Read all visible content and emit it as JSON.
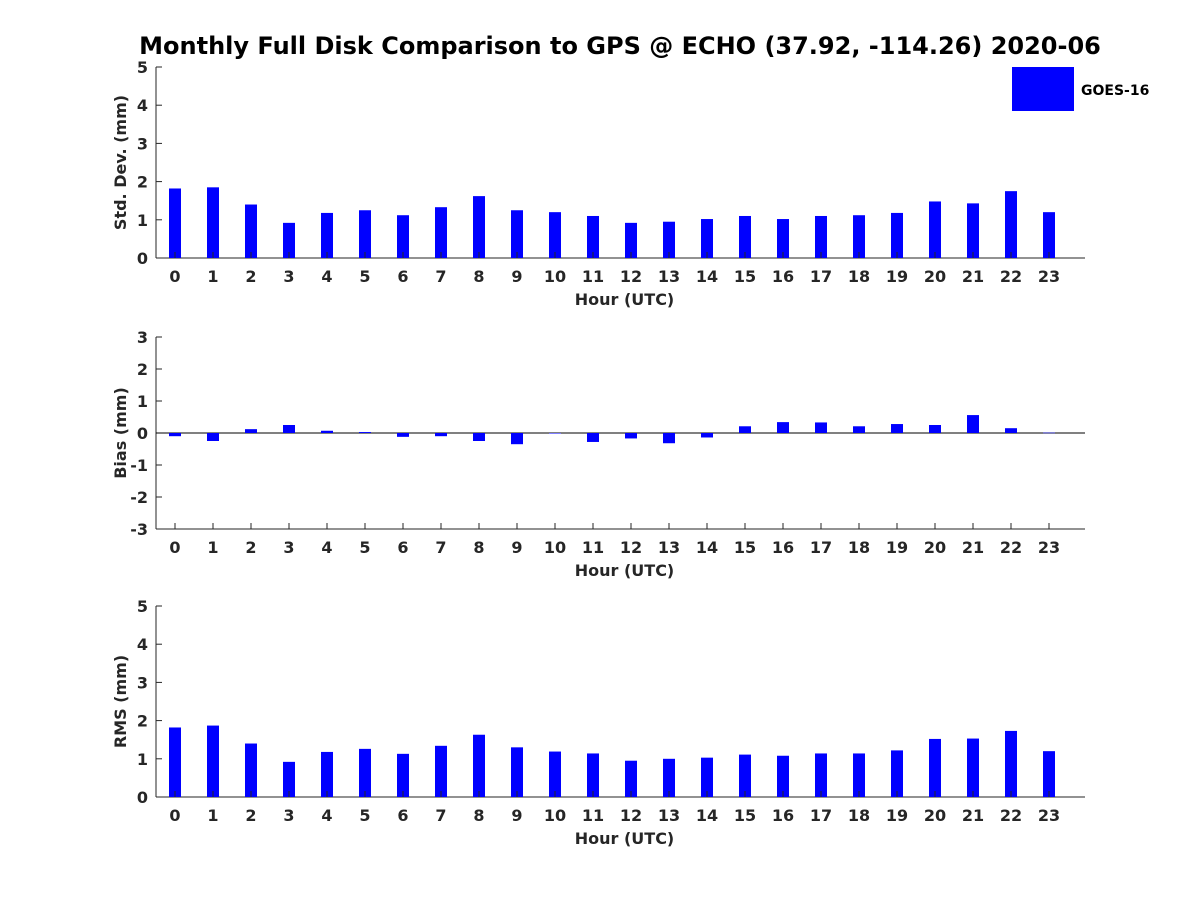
{
  "title": "Monthly Full Disk Comparison to GPS @ ECHO (37.92, -114.26) 2020-06",
  "legend": {
    "label": "GOES-16",
    "color": "#0000ff",
    "placement": "top-right"
  },
  "chart_data": [
    {
      "type": "bar",
      "ylabel": "Std. Dev. (mm)",
      "xlabel": "Hour (UTC)",
      "ylim": [
        0,
        5
      ],
      "yticks": [
        "0",
        "1",
        "2",
        "3",
        "4",
        "5"
      ],
      "categories": [
        "0",
        "1",
        "2",
        "3",
        "4",
        "5",
        "6",
        "7",
        "8",
        "9",
        "10",
        "11",
        "12",
        "13",
        "14",
        "15",
        "16",
        "17",
        "18",
        "19",
        "20",
        "21",
        "22",
        "23"
      ],
      "series": [
        {
          "name": "GOES-16",
          "values": [
            1.82,
            1.85,
            1.4,
            0.92,
            1.18,
            1.25,
            1.12,
            1.33,
            1.62,
            1.25,
            1.2,
            1.1,
            0.92,
            0.95,
            1.02,
            1.1,
            1.02,
            1.1,
            1.12,
            1.18,
            1.48,
            1.43,
            1.75,
            1.2
          ]
        }
      ]
    },
    {
      "type": "bar",
      "ylabel": "Bias (mm)",
      "xlabel": "Hour (UTC)",
      "ylim": [
        -3,
        3
      ],
      "yticks": [
        "-3",
        "-2",
        "-1",
        "0",
        "1",
        "2",
        "3"
      ],
      "categories": [
        "0",
        "1",
        "2",
        "3",
        "4",
        "5",
        "6",
        "7",
        "8",
        "9",
        "10",
        "11",
        "12",
        "13",
        "14",
        "15",
        "16",
        "17",
        "18",
        "19",
        "20",
        "21",
        "22",
        "23"
      ],
      "series": [
        {
          "name": "GOES-16",
          "values": [
            -0.1,
            -0.25,
            0.12,
            0.25,
            0.07,
            0.03,
            -0.12,
            -0.1,
            -0.25,
            -0.35,
            -0.01,
            -0.28,
            -0.17,
            -0.32,
            -0.14,
            0.21,
            0.34,
            0.33,
            0.21,
            0.28,
            0.25,
            0.56,
            0.15,
            0.01
          ]
        }
      ]
    },
    {
      "type": "bar",
      "ylabel": "RMS (mm)",
      "xlabel": "Hour (UTC)",
      "ylim": [
        0,
        5
      ],
      "yticks": [
        "0",
        "1",
        "2",
        "3",
        "4",
        "5"
      ],
      "categories": [
        "0",
        "1",
        "2",
        "3",
        "4",
        "5",
        "6",
        "7",
        "8",
        "9",
        "10",
        "11",
        "12",
        "13",
        "14",
        "15",
        "16",
        "17",
        "18",
        "19",
        "20",
        "21",
        "22",
        "23"
      ],
      "series": [
        {
          "name": "GOES-16",
          "values": [
            1.82,
            1.87,
            1.4,
            0.92,
            1.18,
            1.26,
            1.13,
            1.34,
            1.63,
            1.3,
            1.19,
            1.14,
            0.95,
            1.0,
            1.03,
            1.11,
            1.08,
            1.14,
            1.14,
            1.22,
            1.52,
            1.53,
            1.73,
            1.2
          ]
        }
      ]
    }
  ]
}
